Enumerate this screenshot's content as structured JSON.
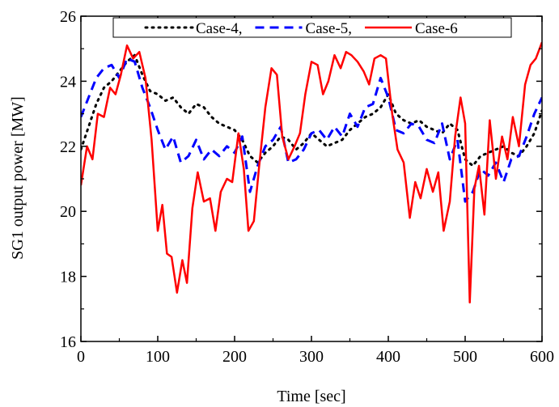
{
  "chart_data": {
    "type": "line",
    "title": "",
    "xlabel": "Time [sec]",
    "ylabel": "SG1 output power [MW]",
    "xlim": [
      0,
      600
    ],
    "ylim": [
      16,
      26
    ],
    "xticks": [
      0,
      100,
      200,
      300,
      400,
      500,
      600
    ],
    "yticks": [
      16,
      18,
      20,
      22,
      24,
      26
    ],
    "grid": false,
    "legend_position": "top",
    "series": [
      {
        "name": "Case-4,",
        "color": "#000000",
        "dash": "dotted",
        "x": [
          0,
          10,
          20,
          30,
          40,
          50,
          60,
          70,
          80,
          90,
          100,
          110,
          120,
          130,
          140,
          150,
          160,
          170,
          180,
          190,
          200,
          210,
          220,
          230,
          240,
          250,
          260,
          270,
          280,
          290,
          300,
          310,
          320,
          330,
          340,
          350,
          360,
          370,
          380,
          390,
          400,
          410,
          420,
          430,
          440,
          450,
          460,
          470,
          480,
          490,
          500,
          510,
          520,
          530,
          540,
          550,
          560,
          570,
          580,
          590,
          600
        ],
        "y": [
          21.9,
          22.6,
          23.3,
          23.8,
          24.0,
          24.3,
          24.6,
          24.8,
          24.2,
          23.7,
          23.6,
          23.4,
          23.5,
          23.2,
          23.0,
          23.3,
          23.2,
          22.9,
          22.7,
          22.6,
          22.5,
          22.2,
          21.7,
          21.5,
          21.8,
          22.0,
          22.3,
          22.2,
          21.9,
          22.1,
          22.4,
          22.2,
          22.0,
          22.1,
          22.2,
          22.5,
          22.7,
          22.9,
          23.0,
          23.2,
          23.6,
          23.0,
          22.8,
          22.7,
          22.8,
          22.6,
          22.5,
          22.4,
          22.7,
          22.5,
          21.6,
          21.4,
          21.7,
          21.8,
          21.9,
          22.0,
          21.8,
          21.7,
          22.0,
          22.4,
          23.1
        ]
      },
      {
        "name": "Case-5,",
        "color": "#0000ff",
        "dash": "dashed",
        "x": [
          0,
          10,
          20,
          30,
          40,
          50,
          60,
          70,
          80,
          90,
          100,
          110,
          120,
          130,
          140,
          150,
          160,
          170,
          180,
          190,
          200,
          210,
          220,
          230,
          240,
          250,
          260,
          270,
          280,
          290,
          300,
          310,
          320,
          330,
          340,
          350,
          360,
          370,
          380,
          390,
          400,
          410,
          420,
          430,
          440,
          450,
          460,
          470,
          480,
          490,
          500,
          510,
          520,
          530,
          540,
          550,
          560,
          570,
          580,
          590,
          600
        ],
        "y": [
          22.9,
          23.5,
          24.1,
          24.4,
          24.5,
          24.1,
          24.7,
          24.6,
          23.8,
          23.2,
          22.5,
          21.9,
          22.3,
          21.5,
          21.7,
          22.2,
          21.6,
          21.9,
          21.7,
          22.0,
          21.8,
          22.3,
          20.6,
          21.4,
          22.0,
          22.2,
          22.6,
          21.5,
          21.6,
          21.9,
          22.4,
          22.5,
          22.2,
          22.6,
          22.3,
          23.0,
          22.6,
          23.2,
          23.3,
          24.1,
          23.5,
          22.5,
          22.4,
          22.7,
          22.6,
          22.2,
          22.1,
          22.7,
          21.6,
          22.2,
          20.3,
          20.6,
          21.3,
          21.1,
          21.5,
          20.9,
          21.6,
          21.7,
          22.3,
          23.0,
          23.5
        ]
      },
      {
        "name": "Case-6",
        "color": "#ff0000",
        "dash": "solid",
        "x": [
          0,
          8,
          15,
          22,
          30,
          38,
          45,
          52,
          60,
          68,
          76,
          84,
          92,
          100,
          106,
          112,
          118,
          125,
          132,
          138,
          145,
          152,
          160,
          168,
          175,
          182,
          190,
          197,
          205,
          212,
          218,
          225,
          232,
          240,
          248,
          255,
          262,
          270,
          278,
          285,
          292,
          300,
          308,
          315,
          322,
          330,
          338,
          345,
          352,
          360,
          368,
          375,
          382,
          390,
          397,
          405,
          412,
          420,
          428,
          435,
          442,
          450,
          458,
          465,
          472,
          480,
          487,
          494,
          500,
          506,
          512,
          518,
          525,
          532,
          540,
          548,
          555,
          562,
          570,
          578,
          585,
          592,
          600
        ],
        "y": [
          20.8,
          22.0,
          21.6,
          23.0,
          22.9,
          23.8,
          23.6,
          24.2,
          25.1,
          24.7,
          24.9,
          24.1,
          22.2,
          19.4,
          20.2,
          18.7,
          18.6,
          17.5,
          18.5,
          17.8,
          20.1,
          21.2,
          20.3,
          20.4,
          19.4,
          20.6,
          21.0,
          20.9,
          22.4,
          21.3,
          19.4,
          19.7,
          21.4,
          23.2,
          24.4,
          24.2,
          22.3,
          21.6,
          22.0,
          22.4,
          23.6,
          24.6,
          24.5,
          23.6,
          24.0,
          24.8,
          24.4,
          24.9,
          24.8,
          24.6,
          24.3,
          23.9,
          24.7,
          24.8,
          24.7,
          23.0,
          21.9,
          21.5,
          19.8,
          20.9,
          20.4,
          21.3,
          20.6,
          21.2,
          19.4,
          20.3,
          22.3,
          23.5,
          22.7,
          17.2,
          20.7,
          21.4,
          19.9,
          22.8,
          21.0,
          22.3,
          21.6,
          22.9,
          22.0,
          23.9,
          24.5,
          24.7,
          25.2
        ]
      }
    ]
  }
}
